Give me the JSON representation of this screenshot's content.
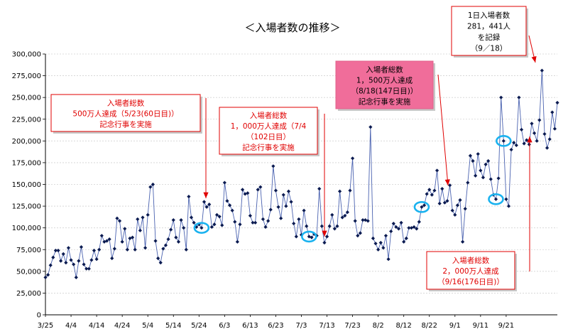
{
  "chart_data": {
    "type": "line",
    "title": "＜入場者数の推移＞",
    "xlabel": "",
    "ylabel": "",
    "ylim": [
      0,
      300000
    ],
    "yticks": [
      "0",
      "25,000",
      "50,000",
      "75,000",
      "100,000",
      "125,000",
      "150,000",
      "175,000",
      "200,000",
      "225,000",
      "250,000",
      "275,000",
      "300,000"
    ],
    "xticks": [
      {
        "label": "3/25",
        "day": 1
      },
      {
        "label": "4/4",
        "day": 11
      },
      {
        "label": "4/14",
        "day": 21
      },
      {
        "label": "4/24",
        "day": 31
      },
      {
        "label": "5/4",
        "day": 41
      },
      {
        "label": "5/14",
        "day": 51
      },
      {
        "label": "5/24",
        "day": 61
      },
      {
        "label": "6/3",
        "day": 71
      },
      {
        "label": "6/13",
        "day": 81
      },
      {
        "label": "6/23",
        "day": 91
      },
      {
        "label": "7/3",
        "day": 101
      },
      {
        "label": "7/13",
        "day": 111
      },
      {
        "label": "7/23",
        "day": 121
      },
      {
        "label": "8/2",
        "day": 131
      },
      {
        "label": "8/12",
        "day": 141
      },
      {
        "label": "8/22",
        "day": 151
      },
      {
        "label": "9/1",
        "day": 161
      },
      {
        "label": "9/11",
        "day": 171
      },
      {
        "label": "9/21",
        "day": 181
      }
    ],
    "series": [
      {
        "name": "入場者数",
        "color": "#4a62b0",
        "values": [
          43000,
          46000,
          57000,
          66000,
          74000,
          74000,
          62000,
          70000,
          60000,
          77000,
          63000,
          58000,
          43000,
          62000,
          78000,
          58000,
          53000,
          53000,
          63000,
          74000,
          64000,
          75000,
          91000,
          84000,
          85000,
          87000,
          65000,
          76000,
          111000,
          108000,
          84000,
          99000,
          75000,
          88000,
          89000,
          75000,
          110000,
          97000,
          112000,
          77000,
          115000,
          147000,
          150000,
          85000,
          65000,
          60000,
          76000,
          80000,
          87000,
          98000,
          109000,
          89000,
          84000,
          109000,
          100000,
          75000,
          136000,
          112000,
          106000,
          101000,
          104000,
          100000,
          130000,
          124000,
          127000,
          101000,
          104000,
          115000,
          113000,
          103000,
          152000,
          131000,
          126000,
          120000,
          107000,
          84000,
          104000,
          144000,
          139000,
          140000,
          114000,
          106000,
          106000,
          144000,
          147000,
          110000,
          101000,
          108000,
          121000,
          171000,
          143000,
          124000,
          111000,
          138000,
          125000,
          142000,
          130000,
          105000,
          90000,
          110000,
          92000,
          120000,
          102000,
          90000,
          89000,
          93000,
          91000,
          145000,
          102000,
          83000,
          90000,
          102000,
          115000,
          99000,
          102000,
          142000,
          112000,
          114000,
          118000,
          143000,
          180000,
          108000,
          91000,
          94000,
          109000,
          109000,
          108000,
          216000,
          88000,
          82000,
          75000,
          83000,
          77000,
          91000,
          64000,
          96000,
          105000,
          101000,
          99000,
          106000,
          84000,
          88000,
          100000,
          100000,
          101000,
          99000,
          107000,
          124000,
          126000,
          139000,
          144000,
          138000,
          143000,
          166000,
          128000,
          145000,
          129000,
          131000,
          149000,
          120000,
          115000,
          126000,
          132000,
          84000,
          122000,
          152000,
          183000,
          177000,
          160000,
          185000,
          166000,
          158000,
          173000,
          177000,
          156000,
          138000,
          133000,
          157000,
          250000,
          200000,
          133000,
          125000,
          190000,
          198000,
          195000,
          250000,
          213000,
          197000,
          201000,
          196000,
          220000,
          209000,
          200000,
          224000,
          281000,
          208000,
          192000,
          202000,
          233000,
          214000,
          244000
        ]
      }
    ],
    "annotations": [
      {
        "lines": [
          "入場者総数",
          "500万人達成（5/23(60日目)）",
          "記念行事を実施"
        ],
        "text_color": "#e00000",
        "border_color": "#e00000",
        "fill": "#ffffff"
      },
      {
        "lines": [
          "入場者総数",
          "1，000万人達成（7/4",
          "（102日目）",
          "記念行事を実施"
        ],
        "text_color": "#e00000",
        "border_color": "#e00000",
        "fill": "#ffffff"
      },
      {
        "lines": [
          "入場者総数",
          "1，500万人達成",
          "（8/18(147日目)）",
          "記念行事を実施"
        ],
        "text_color": "#000000",
        "border_color": "#e0608a",
        "fill": "#f06d9a"
      },
      {
        "lines": [
          "1日入場者数",
          "281，441人",
          "を記録",
          "（9／18）"
        ],
        "text_color": "#000000",
        "border_color": "#e00000",
        "fill": "#ffffff"
      },
      {
        "lines": [
          "入場者総数",
          "2，000万人達成",
          "（9/16(176日目)）"
        ],
        "text_color": "#e00000",
        "border_color": "#e00000",
        "fill": "#ffffff"
      }
    ],
    "highlights": [
      {
        "day": 62,
        "note": "5/23"
      },
      {
        "day": 104,
        "note": "7/4"
      },
      {
        "day": 148,
        "note": "8/18"
      },
      {
        "day": 180,
        "note": "9/18"
      },
      {
        "day": 177,
        "note": "9/16"
      }
    ],
    "grid": true,
    "legend": "none"
  }
}
